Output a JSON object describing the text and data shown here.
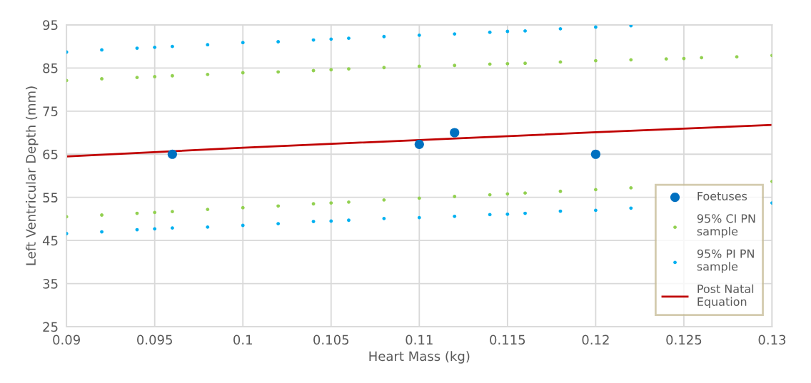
{
  "chart_data": {
    "type": "scatter",
    "xlabel": "Heart Mass (kg)",
    "ylabel": "Left Ventricular Depth (mm)",
    "xlim": [
      0.09,
      0.13
    ],
    "xticks": [
      {
        "value": 0.09,
        "label": "0.09"
      },
      {
        "value": 0.095,
        "label": "0.095"
      },
      {
        "value": 0.1,
        "label": "0.1"
      },
      {
        "value": 0.105,
        "label": "0.105"
      },
      {
        "value": 0.11,
        "label": "0.11"
      },
      {
        "value": 0.115,
        "label": "0.115"
      },
      {
        "value": 0.12,
        "label": "0.12"
      },
      {
        "value": 0.125,
        "label": "0.125"
      },
      {
        "value": 0.13,
        "label": "0.13"
      }
    ],
    "ylim": [
      25,
      95
    ],
    "yticks": [
      25,
      35,
      45,
      55,
      65,
      75,
      85,
      95
    ],
    "grid": true,
    "legend": "bottom right",
    "series": [
      {
        "name": "Foetuses",
        "marker": "circle",
        "color": "#0070c0",
        "x": [
          0.096,
          0.11,
          0.112,
          0.12
        ],
        "values": [
          65,
          67.3,
          70,
          65
        ]
      },
      {
        "name": "95% CI PN sample",
        "marker": "circle",
        "color": "#92d050",
        "x": [
          0.09,
          0.092,
          0.094,
          0.095,
          0.096,
          0.098,
          0.1,
          0.102,
          0.104,
          0.105,
          0.106,
          0.108,
          0.11,
          0.112,
          0.114,
          0.115,
          0.116,
          0.118,
          0.12,
          0.122,
          0.124,
          0.125,
          0.126,
          0.128,
          0.13,
          0.09,
          0.092,
          0.094,
          0.095,
          0.096,
          0.098,
          0.1,
          0.102,
          0.104,
          0.105,
          0.106,
          0.108,
          0.11,
          0.112,
          0.114,
          0.115,
          0.116,
          0.118,
          0.12,
          0.122,
          0.13
        ],
        "values": [
          82.1,
          82.5,
          82.8,
          83.0,
          83.2,
          83.5,
          83.9,
          84.1,
          84.4,
          84.6,
          84.8,
          85.1,
          85.4,
          85.6,
          85.9,
          86.0,
          86.1,
          86.4,
          86.7,
          86.9,
          87.1,
          87.2,
          87.4,
          87.6,
          87.9,
          50.5,
          50.9,
          51.3,
          51.5,
          51.7,
          52.2,
          52.6,
          53.0,
          53.5,
          53.7,
          53.9,
          54.4,
          54.8,
          55.2,
          55.6,
          55.8,
          56.0,
          56.4,
          56.8,
          57.2,
          58.7
        ]
      },
      {
        "name": "95% PI PN sample",
        "marker": "circle",
        "color": "#00b0f0",
        "x": [
          0.09,
          0.092,
          0.094,
          0.095,
          0.096,
          0.098,
          0.1,
          0.102,
          0.104,
          0.105,
          0.106,
          0.108,
          0.11,
          0.112,
          0.114,
          0.115,
          0.116,
          0.118,
          0.12,
          0.122,
          0.09,
          0.092,
          0.094,
          0.095,
          0.096,
          0.098,
          0.1,
          0.102,
          0.104,
          0.105,
          0.106,
          0.108,
          0.11,
          0.112,
          0.114,
          0.115,
          0.116,
          0.118,
          0.12,
          0.122,
          0.13
        ],
        "values": [
          88.7,
          89.2,
          89.6,
          89.8,
          90.0,
          90.4,
          90.9,
          91.1,
          91.5,
          91.7,
          91.9,
          92.3,
          92.6,
          92.9,
          93.3,
          93.5,
          93.6,
          94.1,
          94.5,
          94.8,
          46.6,
          47.0,
          47.5,
          47.7,
          47.9,
          48.1,
          48.5,
          48.9,
          49.4,
          49.5,
          49.7,
          50.1,
          50.3,
          50.6,
          51.0,
          51.1,
          51.3,
          51.8,
          52.0,
          52.5,
          53.7
        ]
      },
      {
        "name": "Post Natal Equation",
        "type": "line",
        "marker": "none",
        "line_style": "solid",
        "color": "#c00000",
        "x": [
          0.09,
          0.1,
          0.11,
          0.12,
          0.13
        ],
        "values": [
          64.5,
          66.5,
          68.3,
          70.1,
          71.8
        ]
      }
    ]
  }
}
